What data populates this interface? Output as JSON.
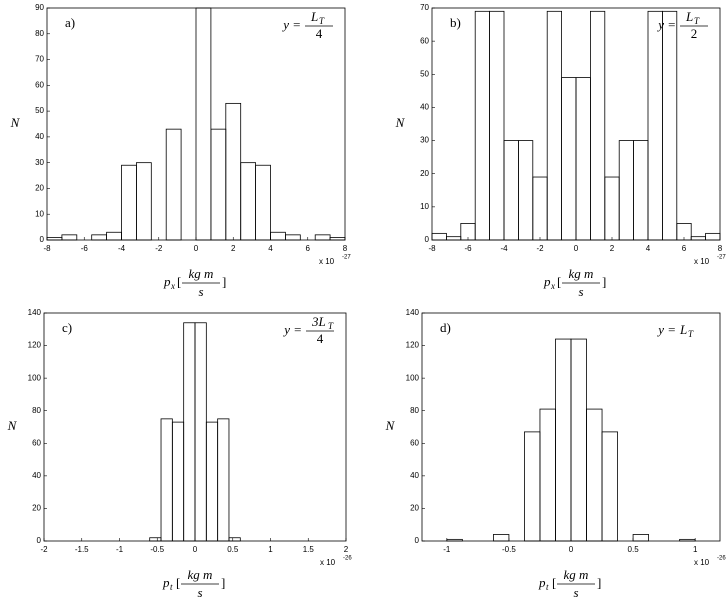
{
  "chart_data": [
    {
      "type": "histogram",
      "label": "a)",
      "annotation": {
        "lhs": "y =",
        "num": "L",
        "num_sub": "T",
        "den": "4"
      },
      "xlabel": {
        "symbol": "p",
        "sub": "x",
        "open": "[",
        "num": "kg m",
        "den": "s",
        "close": "]"
      },
      "ylabel": "N",
      "offset": {
        "base": "x 10",
        "exp": "-27"
      },
      "bins": [
        -8,
        -7.2,
        -6.4,
        -5.6,
        -4.8,
        -4,
        -3.2,
        -2.4,
        -1.6,
        -0.8,
        0,
        0.8,
        1.6,
        2.4,
        3.2,
        4,
        4.8,
        5.6,
        6.4,
        7.2,
        8
      ],
      "values": [
        1,
        2,
        0,
        2,
        3,
        29,
        30,
        0,
        43,
        0,
        90,
        43,
        53,
        30,
        29,
        3,
        2,
        0,
        2,
        1
      ],
      "xlim": [
        -8,
        8
      ],
      "ylim": [
        0,
        90
      ],
      "xticks": [
        -8,
        -6,
        -4,
        -2,
        0,
        2,
        4,
        6,
        8
      ],
      "yticks": [
        0,
        10,
        20,
        30,
        40,
        50,
        60,
        70,
        80,
        90
      ],
      "color": "#000000"
    },
    {
      "type": "histogram",
      "label": "b)",
      "annotation": {
        "lhs": "y =",
        "num": "L",
        "num_sub": "T",
        "den": "2"
      },
      "xlabel": {
        "symbol": "p",
        "sub": "x",
        "open": "[",
        "num": "kg m",
        "den": "s",
        "close": "]"
      },
      "ylabel": "N",
      "offset": {
        "base": "x 10",
        "exp": "-27"
      },
      "bins": [
        -8,
        -7.2,
        -6.4,
        -5.6,
        -4.8,
        -4,
        -3.2,
        -2.4,
        -1.6,
        -0.8,
        0,
        0.8,
        1.6,
        2.4,
        3.2,
        4,
        4.8,
        5.6,
        6.4,
        7.2,
        8
      ],
      "values": [
        2,
        1,
        5,
        69,
        69,
        30,
        30,
        19,
        69,
        49,
        49,
        69,
        19,
        30,
        30,
        69,
        69,
        5,
        1,
        2
      ],
      "xlim": [
        -8,
        8
      ],
      "ylim": [
        0,
        70
      ],
      "xticks": [
        -8,
        -6,
        -4,
        -2,
        0,
        2,
        4,
        6,
        8
      ],
      "yticks": [
        0,
        10,
        20,
        30,
        40,
        50,
        60,
        70
      ],
      "color": "#000000"
    },
    {
      "type": "histogram",
      "label": "c)",
      "annotation": {
        "lhs": "y =",
        "num": "3L",
        "num_sub": "T",
        "den": "4"
      },
      "xlabel": {
        "symbol": "p",
        "sub": "t",
        "open": "[",
        "num": "kg m",
        "den": "s",
        "close": "]"
      },
      "ylabel": "N",
      "offset": {
        "base": "x 10",
        "exp": "-26"
      },
      "bins": [
        -0.6,
        -0.45,
        -0.3,
        -0.15,
        0,
        0.15,
        0.3,
        0.45,
        0.6
      ],
      "values": [
        2,
        75,
        73,
        134,
        134,
        73,
        75,
        2
      ],
      "xlim": [
        -2,
        2
      ],
      "ylim": [
        0,
        140
      ],
      "xticks": [
        -2,
        -1.5,
        -1,
        -0.5,
        0,
        0.5,
        1,
        1.5,
        2
      ],
      "yticks": [
        0,
        20,
        40,
        60,
        80,
        100,
        120,
        140
      ],
      "color": "#000000"
    },
    {
      "type": "histogram",
      "label": "d)",
      "annotation": {
        "lhs": "y =",
        "num": "L",
        "num_sub": "T"
      },
      "xlabel": {
        "symbol": "p",
        "sub": "t",
        "open": "[",
        "num": "kg m",
        "den": "s",
        "close": "]"
      },
      "ylabel": "N",
      "offset": {
        "base": "x 10",
        "exp": "-26"
      },
      "bins": [
        -1.125,
        -1,
        -0.875,
        -0.75,
        -0.625,
        -0.5,
        -0.375,
        -0.25,
        -0.125,
        0,
        0.125,
        0.25,
        0.375,
        0.5,
        0.625,
        0.75,
        0.875,
        1,
        1.125
      ],
      "values": [
        0,
        1,
        0,
        0,
        4,
        0,
        67,
        81,
        124,
        124,
        81,
        67,
        0,
        4,
        0,
        0,
        1,
        0
      ],
      "xlim": [
        -1.2,
        1.2
      ],
      "ylim": [
        0,
        140
      ],
      "xticks": [
        -1,
        -0.5,
        0,
        0.5,
        1
      ],
      "yticks": [
        0,
        20,
        40,
        60,
        80,
        100,
        120,
        140
      ],
      "color": "#000000"
    }
  ]
}
